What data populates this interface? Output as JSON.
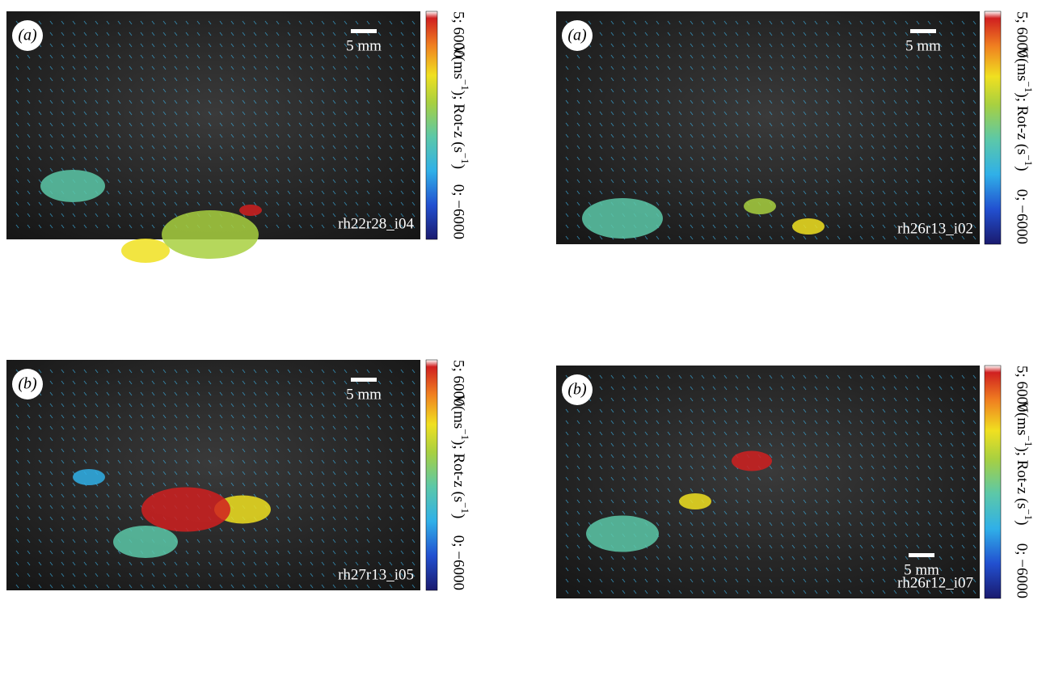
{
  "panels": [
    {
      "label": "(a)",
      "scale_bar": "5 mm",
      "run_id": "rh22r28_i04",
      "colorbar": {
        "top": "5; 6000",
        "bottom": "0; −6000",
        "title": [
          "V(ms",
          "−1",
          "); Rot-z (s",
          "−1",
          ")"
        ]
      }
    },
    {
      "label": "(a)",
      "scale_bar": "5 mm",
      "run_id": "rh26r13_i02",
      "colorbar": {
        "top": "5; 6000",
        "bottom": "0; −6000",
        "title": [
          "V(ms",
          "−1",
          "); Rot-z (s",
          "−1",
          ")"
        ]
      }
    },
    {
      "label": "(b)",
      "scale_bar": "5 mm",
      "run_id": "rh27r13_i05",
      "colorbar": {
        "top": "5; 6000",
        "bottom": "0; −6000",
        "title": [
          "V(ms",
          "−1",
          "); Rot-z (s",
          "−1",
          ")"
        ]
      }
    },
    {
      "label": "(b)",
      "scale_bar": "5 mm",
      "run_id": "rh26r12_i07",
      "colorbar": {
        "top": "5; 6000",
        "bottom": "0; −6000",
        "title": [
          "V(ms",
          "−1",
          "); Rot-z (s",
          "−1",
          ")"
        ]
      }
    }
  ]
}
